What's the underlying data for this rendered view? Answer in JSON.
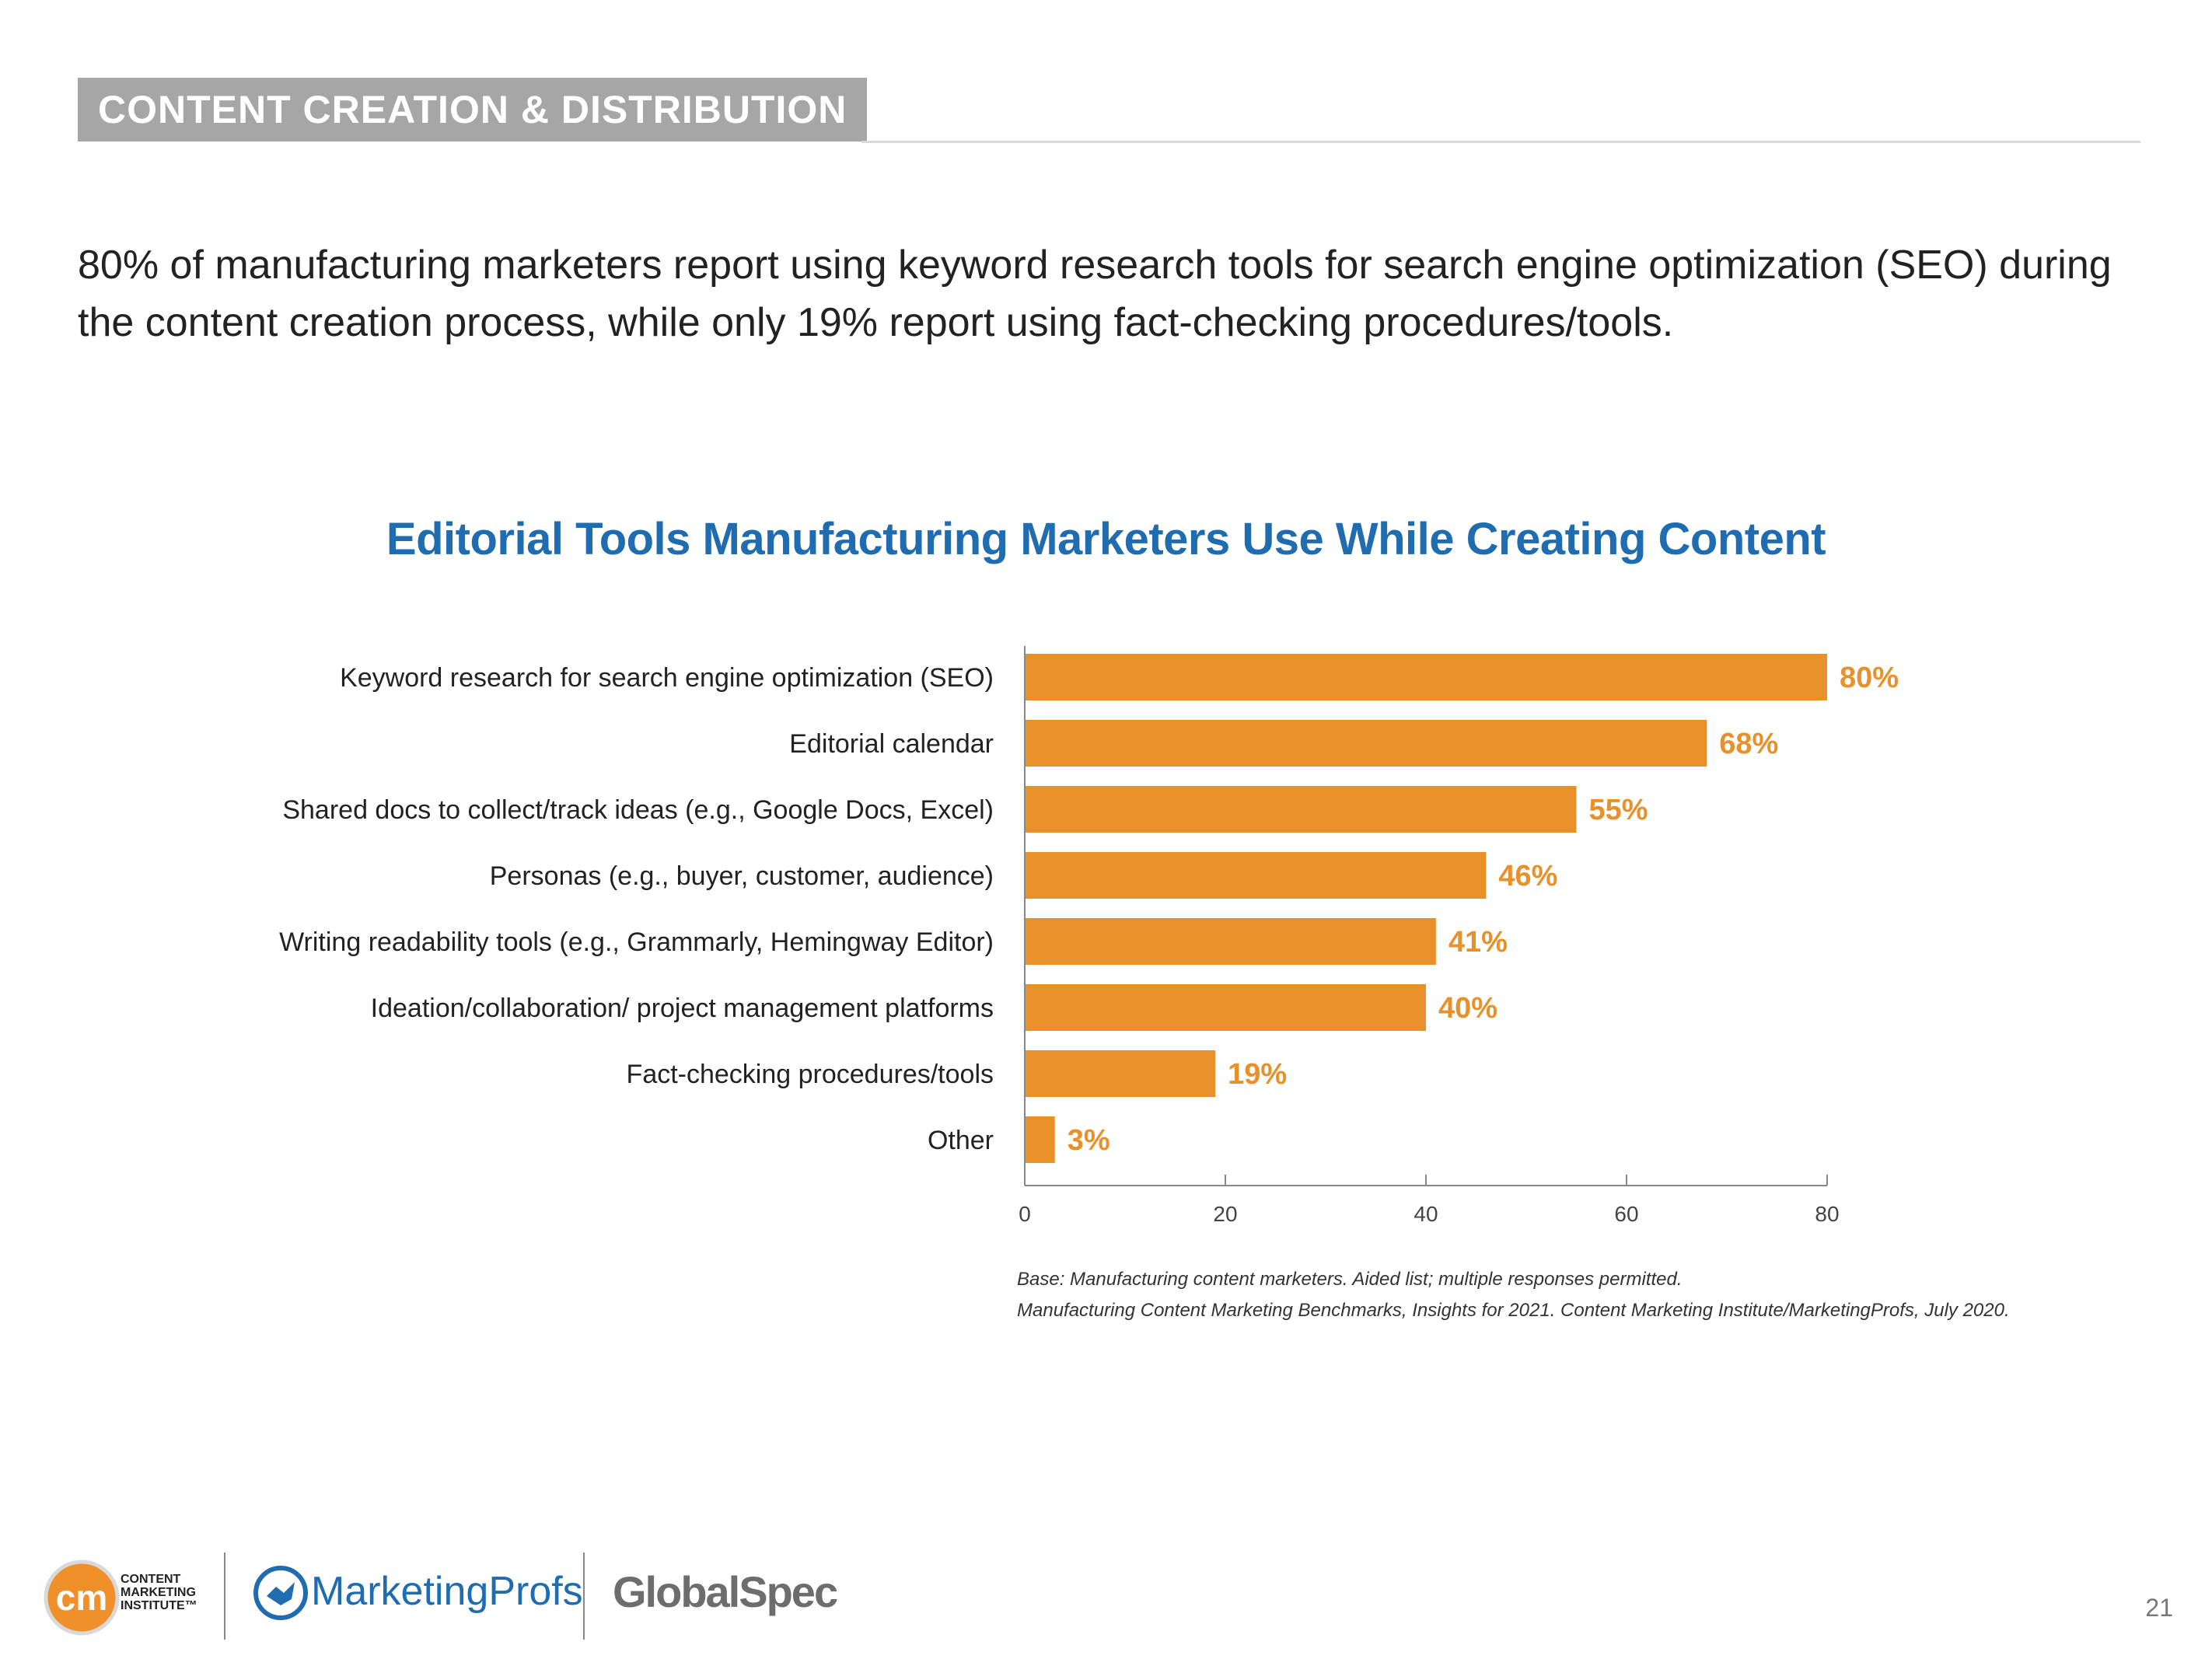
{
  "section": {
    "tag": "CONTENT CREATION & DISTRIBUTION"
  },
  "lead_text": "80% of manufacturing marketers report using keyword research tools for search engine optimization (SEO) during the content creation process, while only 19% report using fact-checking procedures/tools.",
  "chart_data": {
    "type": "bar",
    "orientation": "horizontal",
    "title": "Editorial Tools Manufacturing Marketers Use While Creating Content",
    "categories": [
      "Keyword research for search engine optimization (SEO)",
      "Editorial calendar",
      "Shared docs to collect/track ideas (e.g., Google Docs, Excel)",
      "Personas (e.g., buyer, customer, audience)",
      "Writing readability tools (e.g., Grammarly, Hemingway Editor)",
      "Ideation/collaboration/ project management platforms",
      "Fact-checking procedures/tools",
      "Other"
    ],
    "values": [
      80,
      68,
      55,
      46,
      41,
      40,
      19,
      3
    ],
    "value_labels": [
      "80%",
      "68%",
      "55%",
      "46%",
      "41%",
      "40%",
      "19%",
      "3%"
    ],
    "xlim": [
      0,
      80
    ],
    "xticks": [
      0,
      20,
      40,
      60,
      80
    ],
    "xlabel": "",
    "ylabel": "",
    "grid": false,
    "legend": "none",
    "bar_color": "#e8912a",
    "label_color": "#e8912a"
  },
  "notes": {
    "base": "Base: Manufacturing content marketers. Aided list; multiple responses permitted.",
    "source": "Manufacturing Content Marketing Benchmarks, Insights for 2021. Content Marketing Institute/MarketingProfs, July 2020."
  },
  "footer": {
    "cmi_logo_letters": "cm",
    "cmi_lines": [
      "CONTENT",
      "MARKETING",
      "INSTITUTE™"
    ],
    "marketingprofs": "MarketingProfs",
    "globalspec": "GlobalSpec",
    "colors": {
      "cmi_orange": "#f0902a",
      "mp_blue": "#1f6cb0",
      "gs_gray": "#6d6d6d"
    }
  },
  "page_number": "21"
}
